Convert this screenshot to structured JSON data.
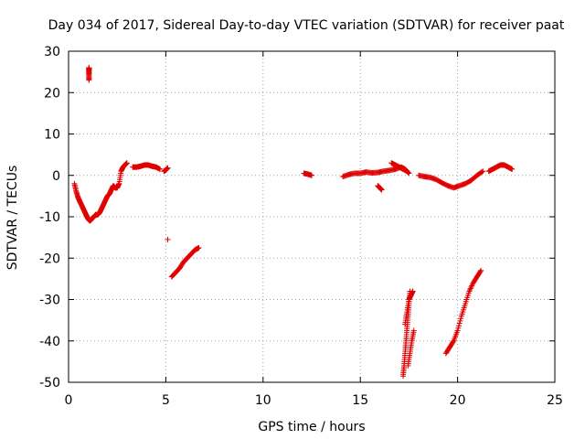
{
  "chart_data": {
    "type": "scatter",
    "title": "Day 034 of 2017, Sidereal Day-to-day VTEC variation (SDTVAR) for receiver paat",
    "xlabel": "GPS time / hours",
    "ylabel": "SDTVAR / TECUs",
    "xlim": [
      0,
      25
    ],
    "ylim": [
      -50,
      30
    ],
    "xticks": [
      "0",
      "5",
      "10",
      "15",
      "20",
      "25"
    ],
    "yticks": [
      "-50",
      "-40",
      "-30",
      "-20",
      "-10",
      "0",
      "10",
      "20",
      "30"
    ],
    "grid": true,
    "marker": "plus",
    "color": "#e00000",
    "segments": [
      {
        "x": [
          0.3,
          0.4,
          0.5,
          0.6,
          0.7,
          0.8,
          0.9,
          1.0,
          1.1,
          1.2,
          1.3,
          1.4,
          1.5,
          1.6,
          1.7,
          1.8,
          1.9,
          2.0,
          2.1,
          2.2,
          2.3,
          2.4,
          2.5,
          2.6,
          2.7,
          2.8,
          2.9,
          3.0
        ],
        "y": [
          -2,
          -4,
          -5.5,
          -6.5,
          -7.5,
          -8.5,
          -9.5,
          -10.5,
          -11,
          -10.5,
          -10,
          -9.5,
          -9.5,
          -9,
          -8,
          -7,
          -6,
          -5,
          -4.5,
          -3.5,
          -2.5,
          -3,
          -3,
          -2,
          1,
          2,
          2.5,
          3
        ]
      },
      {
        "x": [
          1.05,
          1.05,
          1.05,
          1.05
        ],
        "y": [
          23,
          24.5,
          25.5,
          26
        ]
      },
      {
        "x": [
          3.3,
          3.5,
          3.7,
          3.9,
          4.1,
          4.3,
          4.5,
          4.7
        ],
        "y": [
          2,
          2,
          2.2,
          2.5,
          2.5,
          2.2,
          2,
          1.5
        ]
      },
      {
        "x": [
          4.9,
          5.0,
          5.1
        ],
        "y": [
          1,
          1.3,
          1.8
        ]
      },
      {
        "x": [
          5.1
        ],
        "y": [
          -15.5
        ]
      },
      {
        "x": [
          5.3,
          5.5,
          5.7,
          5.9,
          6.1,
          6.3,
          6.5,
          6.7
        ],
        "y": [
          -24.5,
          -23.5,
          -22.5,
          -21,
          -20,
          -19,
          -18,
          -17.5
        ]
      },
      {
        "x": [
          12.1,
          12.3,
          12.5
        ],
        "y": [
          0.5,
          0.3,
          0
        ]
      },
      {
        "x": [
          14.1,
          14.4,
          14.7,
          15.0,
          15.3,
          15.6,
          15.9,
          16.2,
          16.5,
          16.8,
          17.1,
          17.3,
          17.5
        ],
        "y": [
          -0.3,
          0.2,
          0.5,
          0.5,
          0.8,
          0.6,
          0.7,
          1,
          1.2,
          1.5,
          2,
          1.5,
          0.5
        ]
      },
      {
        "x": [
          16.6,
          16.8,
          17.0,
          17.2,
          17.4
        ],
        "y": [
          3,
          2.5,
          2,
          1.5,
          1
        ]
      },
      {
        "x": [
          15.9,
          16.0,
          16.1
        ],
        "y": [
          -2.5,
          -3,
          -3.5
        ]
      },
      {
        "x": [
          17.2,
          17.25,
          17.3,
          17.35,
          17.4,
          17.45,
          17.5,
          17.55
        ],
        "y": [
          -48.5,
          -46,
          -43,
          -40,
          -37,
          -34,
          -31,
          -28
        ]
      },
      {
        "x": [
          17.3,
          17.4,
          17.5,
          17.6,
          17.7
        ],
        "y": [
          -36,
          -33,
          -30,
          -29,
          -28
        ]
      },
      {
        "x": [
          17.45,
          17.55,
          17.65,
          17.75
        ],
        "y": [
          -46,
          -43,
          -40,
          -37.5
        ]
      },
      {
        "x": [
          18.0,
          18.3,
          18.6,
          18.9,
          19.2,
          19.5,
          19.8,
          20.1,
          20.4,
          20.7,
          21.0,
          21.3
        ],
        "y": [
          0,
          -0.3,
          -0.5,
          -1,
          -1.8,
          -2.5,
          -3,
          -2.5,
          -2,
          -1.2,
          0,
          1
        ]
      },
      {
        "x": [
          19.4,
          19.6,
          19.8,
          20.0,
          20.2,
          20.4,
          20.6,
          20.8,
          21.0,
          21.2
        ],
        "y": [
          -43,
          -41.5,
          -40,
          -37.5,
          -34,
          -31,
          -28,
          -26,
          -24.5,
          -23
        ]
      },
      {
        "x": [
          21.6,
          21.8,
          22.0,
          22.2,
          22.4,
          22.6,
          22.8
        ],
        "y": [
          1,
          1.5,
          2,
          2.5,
          2.5,
          2,
          1.5
        ]
      }
    ]
  }
}
